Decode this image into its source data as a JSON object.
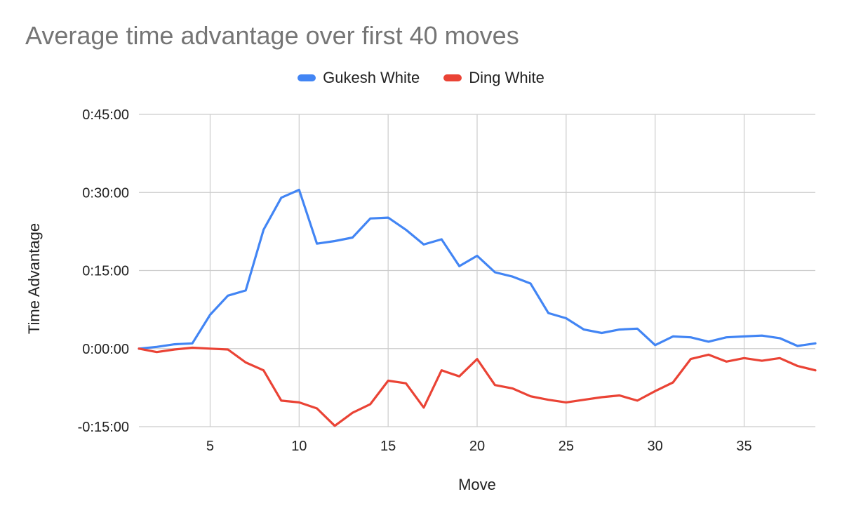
{
  "chart_data": {
    "type": "line",
    "title": "Average time advantage over first 40 moves",
    "xlabel": "Move",
    "ylabel": "Time Advantage",
    "xlim": [
      1,
      39
    ],
    "ylim_seconds": [
      -900,
      2700
    ],
    "y_ticks": [
      {
        "label": "-0:15:00",
        "seconds": -900
      },
      {
        "label": "0:00:00",
        "seconds": 0
      },
      {
        "label": "0:15:00",
        "seconds": 900
      },
      {
        "label": "0:30:00",
        "seconds": 1800
      },
      {
        "label": "0:45:00",
        "seconds": 2700
      }
    ],
    "x_ticks": [
      5,
      10,
      15,
      20,
      25,
      30,
      35
    ],
    "grid": true,
    "legend_position": "top-center",
    "x": [
      1,
      2,
      3,
      4,
      5,
      6,
      7,
      8,
      9,
      10,
      11,
      12,
      13,
      14,
      15,
      16,
      17,
      18,
      19,
      20,
      21,
      22,
      23,
      24,
      25,
      26,
      27,
      28,
      29,
      30,
      31,
      32,
      33,
      34,
      35,
      36,
      37,
      38,
      39
    ],
    "series": [
      {
        "name": "Gukesh White",
        "color": "#4285F4",
        "values_seconds": [
          0,
          20,
          50,
          60,
          390,
          610,
          670,
          1370,
          1740,
          1830,
          1210,
          1240,
          1280,
          1500,
          1510,
          1370,
          1200,
          1260,
          950,
          1070,
          880,
          830,
          750,
          410,
          350,
          220,
          180,
          220,
          230,
          40,
          140,
          130,
          80,
          130,
          140,
          150,
          120,
          30,
          60
        ]
      },
      {
        "name": "Ding White",
        "color": "#EA4335",
        "values_seconds": [
          0,
          -40,
          -10,
          10,
          0,
          -10,
          -160,
          -250,
          -600,
          -620,
          -690,
          -890,
          -740,
          -640,
          -370,
          -400,
          -680,
          -250,
          -320,
          -120,
          -420,
          -460,
          -550,
          -590,
          -620,
          -590,
          -560,
          -540,
          -600,
          -490,
          -390,
          -120,
          -70,
          -150,
          -110,
          -140,
          -110,
          -200,
          -250
        ]
      }
    ]
  }
}
